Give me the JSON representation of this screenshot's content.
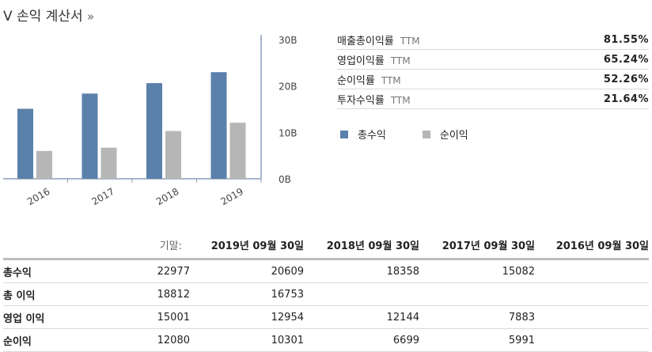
{
  "title": "V 손익 계산서",
  "title_chevron": "»",
  "chart_data": {
    "type": "bar",
    "categories": [
      "2016",
      "2017",
      "2018",
      "2019"
    ],
    "series": [
      {
        "name": "총수익",
        "values": [
          15082,
          18358,
          20609,
          22977
        ],
        "color": "#5b80ab"
      },
      {
        "name": "순이익",
        "values": [
          5991,
          6699,
          10301,
          12080
        ],
        "color": "#b6b6b6"
      }
    ],
    "yticks": [
      "0B",
      "10B",
      "20B",
      "30B"
    ],
    "ylim": [
      0,
      30000
    ],
    "grid": false,
    "legend_placement": "right"
  },
  "ratios": [
    {
      "label": "매출총이익률",
      "ttm": "TTM",
      "value": "81.55%"
    },
    {
      "label": "영업이익률",
      "ttm": "TTM",
      "value": "65.24%"
    },
    {
      "label": "순이익률",
      "ttm": "TTM",
      "value": "52.26%"
    },
    {
      "label": "투자수익률",
      "ttm": "TTM",
      "value": "21.64%"
    }
  ],
  "legend": [
    {
      "label": "총수익",
      "color": "#5b80ab"
    },
    {
      "label": "순이익",
      "color": "#b6b6b6"
    }
  ],
  "table": {
    "period_label": "기말:",
    "headers": [
      "2019년 09월 30일",
      "2018년 09월 30일",
      "2017년 09월 30일",
      "2016년 09월 30일"
    ],
    "rows": [
      {
        "label": "총수익",
        "values": [
          "22977",
          "20609",
          "18358",
          "15082"
        ]
      },
      {
        "label": "총 이익",
        "values": [
          "18812",
          "16753",
          "",
          ""
        ]
      },
      {
        "label": "영업 이익",
        "values": [
          "15001",
          "12954",
          "12144",
          "7883"
        ]
      },
      {
        "label": "순이익",
        "values": [
          "12080",
          "10301",
          "6699",
          "5991"
        ]
      }
    ]
  }
}
